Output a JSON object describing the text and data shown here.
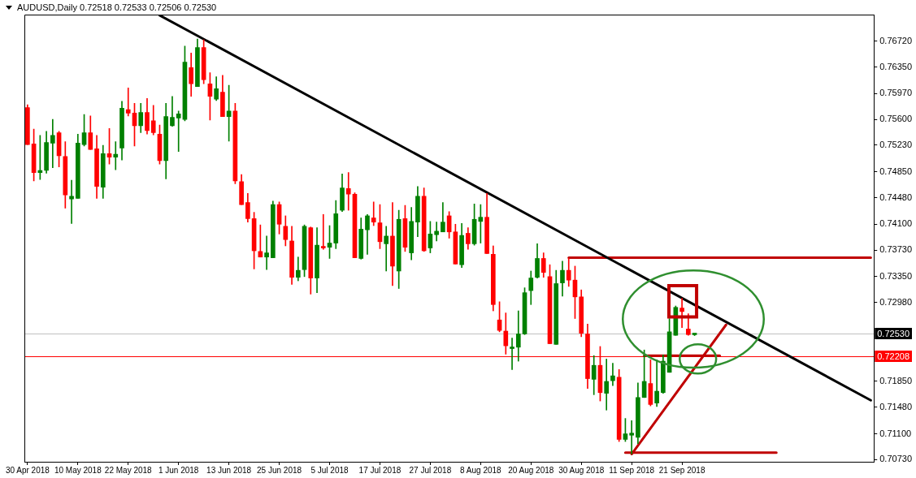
{
  "chart_data": {
    "type": "candlestick",
    "title": "AUDUSD,Daily 0.72518 0.72533 0.72506 0.72530",
    "categories": [
      "30 Apr 2018",
      null,
      null,
      null,
      null,
      null,
      null,
      null,
      "10 May 2018",
      null,
      null,
      null,
      null,
      null,
      null,
      null,
      "22 May 2018",
      null,
      null,
      null,
      null,
      null,
      null,
      null,
      "1 Jun 2018",
      null,
      null,
      null,
      null,
      null,
      null,
      null,
      "13 Jun 2018",
      null,
      null,
      null,
      null,
      null,
      null,
      null,
      "25 Jun 2018",
      null,
      null,
      null,
      null,
      null,
      null,
      null,
      "5 Jul 2018",
      null,
      null,
      null,
      null,
      null,
      null,
      null,
      "17 Jul 2018",
      null,
      null,
      null,
      null,
      null,
      null,
      null,
      "27 Jul 2018",
      null,
      null,
      null,
      null,
      null,
      null,
      null,
      "8 Aug 2018",
      null,
      null,
      null,
      null,
      null,
      null,
      null,
      "20 Aug 2018",
      null,
      null,
      null,
      null,
      null,
      null,
      null,
      "30 Aug 2018",
      null,
      null,
      null,
      null,
      null,
      null,
      null,
      "11 Sep 2018",
      null,
      null,
      null,
      null,
      null,
      null,
      null,
      "21 Sep 2018",
      null,
      null,
      null,
      null,
      null,
      null,
      null,
      null,
      null,
      null,
      null,
      null,
      null,
      null,
      null,
      null,
      null,
      null,
      null,
      null,
      null,
      null,
      null,
      null,
      null,
      null,
      null,
      null,
      null,
      null
    ],
    "ylim": [
      0.707,
      0.771
    ],
    "yticks": [
      {
        "value": 0.7672,
        "label": "0.76720"
      },
      {
        "value": 0.7635,
        "label": "0.76350"
      },
      {
        "value": 0.7597,
        "label": "0.75970"
      },
      {
        "value": 0.756,
        "label": "0.75600"
      },
      {
        "value": 0.7523,
        "label": "0.75230"
      },
      {
        "value": 0.7485,
        "label": "0.74850"
      },
      {
        "value": 0.7448,
        "label": "0.74480"
      },
      {
        "value": 0.741,
        "label": "0.74100"
      },
      {
        "value": 0.7373,
        "label": "0.73730"
      },
      {
        "value": 0.7335,
        "label": "0.73350"
      },
      {
        "value": 0.7298,
        "label": "0.72980"
      },
      {
        "value": 0.7185,
        "label": "0.71850"
      },
      {
        "value": 0.7148,
        "label": "0.71480"
      },
      {
        "value": 0.711,
        "label": "0.71100"
      },
      {
        "value": 0.7073,
        "label": "0.70730"
      }
    ],
    "ref_lines": [
      {
        "axis": "y",
        "value": 0.7253,
        "label": "0.72530",
        "color": "#c0c0c0"
      },
      {
        "axis": "y",
        "value": 0.72208,
        "label": "0.72208",
        "color": "#ff0000"
      }
    ],
    "series": [
      {
        "ohlc": [
          [
            0.7577,
            0.7581,
            0.7524,
            0.7524
          ],
          [
            0.7525,
            0.7546,
            0.7472,
            0.7484
          ],
          [
            0.7484,
            0.7537,
            0.7474,
            0.7487
          ],
          [
            0.7487,
            0.7543,
            0.7483,
            0.7527
          ],
          [
            0.7526,
            0.756,
            0.7491,
            0.7537
          ],
          [
            0.7541,
            0.7543,
            0.7492,
            0.7508
          ],
          [
            0.7507,
            0.7528,
            0.7433,
            0.7452
          ],
          [
            0.7446,
            0.7473,
            0.7411,
            0.745
          ],
          [
            0.7447,
            0.7539,
            0.7447,
            0.7526
          ],
          [
            0.7524,
            0.7567,
            0.7522,
            0.7541
          ],
          [
            0.7541,
            0.7565,
            0.7517,
            0.7517
          ],
          [
            0.7518,
            0.7537,
            0.7447,
            0.7464
          ],
          [
            0.7463,
            0.7523,
            0.7447,
            0.7511
          ],
          [
            0.7511,
            0.7547,
            0.7496,
            0.7506
          ],
          [
            0.7506,
            0.7528,
            0.7488,
            0.751
          ],
          [
            0.7519,
            0.7586,
            0.7502,
            0.7576
          ],
          [
            0.7574,
            0.7605,
            0.7565,
            0.7569
          ],
          [
            0.7569,
            0.7583,
            0.7522,
            0.7551
          ],
          [
            0.7551,
            0.7583,
            0.7541,
            0.757
          ],
          [
            0.757,
            0.759,
            0.7539,
            0.7544
          ],
          [
            0.7558,
            0.758,
            0.7538,
            0.7541
          ],
          [
            0.7539,
            0.7552,
            0.7496,
            0.7501
          ],
          [
            0.7501,
            0.7583,
            0.7475,
            0.7564
          ],
          [
            0.7551,
            0.7593,
            0.755,
            0.7563
          ],
          [
            0.7562,
            0.7572,
            0.7514,
            0.7568
          ],
          [
            0.756,
            0.7665,
            0.7558,
            0.7642
          ],
          [
            0.7634,
            0.7655,
            0.7593,
            0.7611
          ],
          [
            0.7607,
            0.7675,
            0.7607,
            0.7663
          ],
          [
            0.7663,
            0.7674,
            0.7611,
            0.7617
          ],
          [
            0.7611,
            0.7627,
            0.7559,
            0.7593
          ],
          [
            0.7589,
            0.7621,
            0.7587,
            0.7604
          ],
          [
            0.7599,
            0.7623,
            0.7564,
            0.7564
          ],
          [
            0.7564,
            0.7609,
            0.7529,
            0.7572
          ],
          [
            0.7572,
            0.7583,
            0.7468,
            0.7472
          ],
          [
            0.7471,
            0.7481,
            0.7438,
            0.7438
          ],
          [
            0.7441,
            0.7454,
            0.7413,
            0.7418
          ],
          [
            0.7418,
            0.7427,
            0.7346,
            0.7372
          ],
          [
            0.7371,
            0.7409,
            0.7363,
            0.7363
          ],
          [
            0.7363,
            0.7393,
            0.7345,
            0.7369
          ],
          [
            0.7362,
            0.7443,
            0.7362,
            0.7438
          ],
          [
            0.7438,
            0.7442,
            0.7396,
            0.741
          ],
          [
            0.7407,
            0.7422,
            0.7379,
            0.7388
          ],
          [
            0.7386,
            0.7407,
            0.7324,
            0.7334
          ],
          [
            0.7334,
            0.7363,
            0.7329,
            0.7344
          ],
          [
            0.7345,
            0.7409,
            0.7335,
            0.7407
          ],
          [
            0.7405,
            0.7406,
            0.731,
            0.7333
          ],
          [
            0.7333,
            0.7405,
            0.7312,
            0.738
          ],
          [
            0.7378,
            0.7424,
            0.7374,
            0.7376
          ],
          [
            0.7377,
            0.7408,
            0.7361,
            0.7383
          ],
          [
            0.7383,
            0.7444,
            0.7375,
            0.7425
          ],
          [
            0.743,
            0.7482,
            0.7428,
            0.7462
          ],
          [
            0.7461,
            0.7484,
            0.743,
            0.7453
          ],
          [
            0.7453,
            0.7455,
            0.7362,
            0.7362
          ],
          [
            0.7361,
            0.7419,
            0.736,
            0.7403
          ],
          [
            0.7402,
            0.7424,
            0.7367,
            0.7422
          ],
          [
            0.7419,
            0.7442,
            0.7408,
            0.7413
          ],
          [
            0.7412,
            0.7438,
            0.7375,
            0.7385
          ],
          [
            0.7382,
            0.7407,
            0.7343,
            0.7393
          ],
          [
            0.7393,
            0.7441,
            0.7322,
            0.735
          ],
          [
            0.7343,
            0.743,
            0.7318,
            0.7417
          ],
          [
            0.7418,
            0.7437,
            0.7371,
            0.7377
          ],
          [
            0.7369,
            0.7434,
            0.7359,
            0.7414
          ],
          [
            0.7413,
            0.7464,
            0.7392,
            0.745
          ],
          [
            0.745,
            0.7462,
            0.7371,
            0.7372
          ],
          [
            0.7376,
            0.7414,
            0.7369,
            0.7396
          ],
          [
            0.7395,
            0.7413,
            0.7386,
            0.74
          ],
          [
            0.7399,
            0.7441,
            0.7399,
            0.7413
          ],
          [
            0.7422,
            0.7428,
            0.739,
            0.7399
          ],
          [
            0.7399,
            0.741,
            0.7353,
            0.7353
          ],
          [
            0.7352,
            0.7411,
            0.7348,
            0.7394
          ],
          [
            0.7397,
            0.7405,
            0.7374,
            0.7382
          ],
          [
            0.7382,
            0.7439,
            0.738,
            0.7417
          ],
          [
            0.7414,
            0.7438,
            0.7383,
            0.742
          ],
          [
            0.742,
            0.7454,
            0.7368,
            0.7368
          ],
          [
            0.7367,
            0.7379,
            0.7286,
            0.7295
          ],
          [
            0.7273,
            0.7299,
            0.7256,
            0.7258
          ],
          [
            0.7257,
            0.7283,
            0.7224,
            0.7236
          ],
          [
            0.7232,
            0.7247,
            0.7202,
            0.7234
          ],
          [
            0.7234,
            0.7286,
            0.7214,
            0.7253
          ],
          [
            0.7253,
            0.7319,
            0.7252,
            0.7312
          ],
          [
            0.7315,
            0.7343,
            0.7295,
            0.7333
          ],
          [
            0.7334,
            0.7382,
            0.7333,
            0.7361
          ],
          [
            0.7361,
            0.7369,
            0.7334,
            0.7341
          ],
          [
            0.7335,
            0.7352,
            0.7239,
            0.7239
          ],
          [
            0.7238,
            0.7344,
            0.7238,
            0.7325
          ],
          [
            0.7326,
            0.7357,
            0.7307,
            0.7344
          ],
          [
            0.7344,
            0.7361,
            0.7321,
            0.733
          ],
          [
            0.733,
            0.735,
            0.7275,
            0.7306
          ],
          [
            0.7306,
            0.7316,
            0.7249,
            0.7254
          ],
          [
            0.7253,
            0.7267,
            0.7175,
            0.7189
          ],
          [
            0.7188,
            0.7222,
            0.7166,
            0.7208
          ],
          [
            0.7208,
            0.7235,
            0.7157,
            0.7169
          ],
          [
            0.7168,
            0.7217,
            0.7144,
            0.7185
          ],
          [
            0.7186,
            0.7211,
            0.7179,
            0.7193
          ],
          [
            0.7191,
            0.7202,
            0.7099,
            0.7102
          ],
          [
            0.7102,
            0.7132,
            0.7099,
            0.711
          ],
          [
            0.7108,
            0.7129,
            0.7081,
            0.7111
          ],
          [
            0.7105,
            0.7183,
            0.7096,
            0.7162
          ],
          [
            0.7162,
            0.723,
            0.7162,
            0.7185
          ],
          [
            0.7182,
            0.7216,
            0.715,
            0.7152
          ],
          [
            0.7154,
            0.7216,
            0.7149,
            0.7171
          ],
          [
            0.7169,
            0.7223,
            0.7168,
            0.7214
          ],
          [
            0.7198,
            0.7275,
            0.7198,
            0.7256
          ],
          [
            0.7251,
            0.7293,
            0.7251,
            0.7291
          ],
          [
            0.729,
            0.7304,
            0.7262,
            0.7285
          ],
          [
            0.726,
            0.7282,
            0.7251,
            0.7252
          ],
          [
            0.72518,
            0.72533,
            0.72506,
            0.7253
          ],
          null,
          null,
          null,
          null,
          null,
          null,
          null,
          null,
          null,
          null,
          null,
          null,
          null,
          null,
          null,
          null,
          null,
          null,
          null,
          null,
          null,
          null,
          null,
          null,
          null,
          null,
          null,
          null
        ],
        "colors": [
          "#ff0000",
          "#ff0000",
          "#008000",
          "#008000",
          "#008000",
          "#ff0000",
          "#ff0000",
          "#008000",
          "#008000",
          "#008000",
          "#ff0000",
          "#ff0000",
          "#008000",
          "#ff0000",
          "#008000",
          "#008000",
          "#ff0000",
          "#ff0000",
          "#008000",
          "#ff0000",
          "#ff0000",
          "#ff0000",
          "#008000",
          "#008000",
          "#008000",
          "#008000",
          "#ff0000",
          "#008000",
          "#ff0000",
          "#ff0000",
          "#008000",
          "#ff0000",
          "#008000",
          "#ff0000",
          "#ff0000",
          "#ff0000",
          "#ff0000",
          "#ff0000",
          "#008000",
          "#008000",
          "#ff0000",
          "#ff0000",
          "#ff0000",
          "#008000",
          "#008000",
          "#ff0000",
          "#008000",
          "#ff0000",
          "#008000",
          "#008000",
          "#008000",
          "#ff0000",
          "#ff0000",
          "#008000",
          "#008000",
          "#ff0000",
          "#ff0000",
          "#008000",
          "#ff0000",
          "#008000",
          "#ff0000",
          "#008000",
          "#008000",
          "#ff0000",
          "#008000",
          "#008000",
          "#008000",
          "#ff0000",
          "#ff0000",
          "#008000",
          "#ff0000",
          "#008000",
          "#008000",
          "#ff0000",
          "#ff0000",
          "#ff0000",
          "#ff0000",
          "#008000",
          "#008000",
          "#008000",
          "#008000",
          "#008000",
          "#ff0000",
          "#ff0000",
          "#008000",
          "#008000",
          "#ff0000",
          "#ff0000",
          "#ff0000",
          "#ff0000",
          "#008000",
          "#ff0000",
          "#008000",
          "#008000",
          "#ff0000",
          "#008000",
          "#008000",
          "#008000",
          "#008000",
          "#ff0000",
          "#008000",
          "#008000",
          "#008000",
          "#008000",
          "#ff0000",
          "#ff0000",
          "#008000",
          null,
          null,
          null,
          null,
          null,
          null,
          null,
          null,
          null,
          null,
          null,
          null,
          null,
          null,
          null,
          null,
          null,
          null,
          null,
          null,
          null,
          null,
          null,
          null,
          null,
          null,
          null,
          null
        ]
      },
      {
        "type": "line",
        "color": "#000000",
        "values": [
          null,
          null,
          null,
          null,
          null,
          null,
          null,
          null,
          null,
          null,
          null,
          null,
          null,
          null,
          null,
          null,
          null,
          null,
          null,
          null,
          null,
          0.7709,
          null,
          null,
          null,
          null,
          null,
          null,
          null,
          null,
          null,
          null,
          null,
          null,
          null,
          null,
          null,
          null,
          null,
          null,
          null,
          null,
          null,
          null,
          null,
          null,
          null,
          null,
          null,
          null,
          null,
          null,
          null,
          null,
          null,
          null,
          null,
          null,
          null,
          null,
          null,
          null,
          null,
          null,
          null,
          null,
          null,
          null,
          null,
          null,
          null,
          null,
          null,
          null,
          null,
          null,
          null,
          null,
          null,
          null,
          null,
          null,
          null,
          null,
          null,
          null,
          null,
          null,
          null,
          null,
          null,
          null,
          null,
          null,
          null,
          null,
          null,
          null,
          null,
          null,
          null,
          null,
          null,
          null,
          null,
          null,
          null,
          null,
          null,
          null,
          null,
          null,
          null,
          null,
          null,
          null,
          null,
          null,
          null,
          null,
          null,
          null,
          null,
          null,
          null,
          null,
          null,
          null,
          null,
          null,
          null,
          null,
          null,
          null,
          0.7158
        ]
      },
      {
        "type": "line",
        "color": "#c00000",
        "values": [
          null,
          null,
          null,
          null,
          null,
          null,
          null,
          null,
          null,
          null,
          null,
          null,
          null,
          null,
          null,
          null,
          null,
          null,
          null,
          null,
          null,
          null,
          null,
          null,
          null,
          null,
          null,
          null,
          null,
          null,
          null,
          null,
          null,
          null,
          null,
          null,
          null,
          null,
          null,
          null,
          null,
          null,
          null,
          null,
          null,
          null,
          null,
          null,
          null,
          null,
          null,
          null,
          null,
          null,
          null,
          null,
          null,
          null,
          null,
          null,
          null,
          null,
          null,
          null,
          null,
          null,
          null,
          null,
          null,
          null,
          null,
          null,
          null,
          null,
          null,
          null,
          null,
          null,
          null,
          null,
          null,
          null,
          null,
          null,
          null,
          null,
          0.7362,
          null,
          null,
          null,
          null,
          null,
          null,
          null,
          null,
          null,
          null,
          null,
          null,
          null,
          null,
          null,
          null,
          null,
          null,
          null,
          null,
          null,
          null,
          null,
          null,
          null,
          null,
          null,
          null,
          null,
          null,
          null,
          null,
          null,
          null,
          null,
          null,
          null,
          null,
          null,
          null,
          null,
          null,
          null,
          null,
          null,
          null,
          null,
          0.7362
        ]
      },
      {
        "type": "line",
        "color": "#c00000",
        "values": [
          null,
          null,
          null,
          null,
          null,
          null,
          null,
          null,
          null,
          null,
          null,
          null,
          null,
          null,
          null,
          null,
          null,
          null,
          null,
          null,
          null,
          null,
          null,
          null,
          null,
          null,
          null,
          null,
          null,
          null,
          null,
          null,
          null,
          null,
          null,
          null,
          null,
          null,
          null,
          null,
          null,
          null,
          null,
          null,
          null,
          null,
          null,
          null,
          null,
          null,
          null,
          null,
          null,
          null,
          null,
          null,
          null,
          null,
          null,
          null,
          null,
          null,
          null,
          null,
          null,
          null,
          null,
          null,
          null,
          null,
          null,
          null,
          null,
          null,
          null,
          null,
          null,
          null,
          null,
          null,
          null,
          null,
          null,
          null,
          null,
          null,
          null,
          null,
          null,
          null,
          null,
          null,
          null,
          null,
          null,
          0.7083,
          null,
          null,
          null,
          null,
          null,
          null,
          null,
          null,
          null,
          null,
          null,
          null,
          null,
          null,
          null,
          null,
          null,
          null,
          null,
          null,
          null,
          null,
          null,
          0.7083,
          null,
          null,
          null,
          null,
          null,
          null,
          null,
          null,
          null,
          null,
          null,
          null,
          null,
          null,
          null
        ]
      },
      {
        "type": "line",
        "color": "#c00000",
        "values": [
          null,
          null,
          null,
          null,
          null,
          null,
          null,
          null,
          null,
          null,
          null,
          null,
          null,
          null,
          null,
          null,
          null,
          null,
          null,
          null,
          null,
          null,
          null,
          null,
          null,
          null,
          null,
          null,
          null,
          null,
          null,
          null,
          null,
          null,
          null,
          null,
          null,
          null,
          null,
          null,
          null,
          null,
          null,
          null,
          null,
          null,
          null,
          null,
          null,
          null,
          null,
          null,
          null,
          null,
          null,
          null,
          null,
          null,
          null,
          null,
          null,
          null,
          null,
          null,
          null,
          null,
          null,
          null,
          null,
          null,
          null,
          null,
          null,
          null,
          null,
          null,
          null,
          null,
          null,
          null,
          null,
          null,
          null,
          null,
          null,
          null,
          null,
          null,
          null,
          null,
          null,
          null,
          null,
          null,
          null,
          null,
          null,
          null,
          0.7222,
          null,
          null,
          null,
          null,
          null,
          null,
          null,
          null,
          null,
          null,
          null,
          0.7222,
          null,
          null,
          null,
          null,
          null,
          null,
          null,
          null,
          null,
          null,
          null,
          null,
          null,
          null,
          null,
          null,
          null,
          null,
          null,
          null,
          null,
          null,
          null,
          null
        ]
      },
      {
        "type": "line",
        "color": "#c00000",
        "values": [
          null,
          null,
          null,
          null,
          null,
          null,
          null,
          null,
          null,
          null,
          null,
          null,
          null,
          null,
          null,
          null,
          null,
          null,
          null,
          null,
          null,
          null,
          null,
          null,
          null,
          null,
          null,
          null,
          null,
          null,
          null,
          null,
          null,
          null,
          null,
          null,
          null,
          null,
          null,
          null,
          null,
          null,
          null,
          null,
          null,
          null,
          null,
          null,
          null,
          null,
          null,
          null,
          null,
          null,
          null,
          null,
          null,
          null,
          null,
          null,
          null,
          null,
          null,
          null,
          null,
          null,
          null,
          null,
          null,
          null,
          null,
          null,
          null,
          null,
          null,
          null,
          null,
          null,
          null,
          null,
          null,
          null,
          null,
          null,
          null,
          null,
          null,
          null,
          null,
          null,
          null,
          null,
          null,
          null,
          null,
          null,
          0.7081,
          null,
          null,
          null,
          null,
          null,
          null,
          null,
          null,
          null,
          null,
          null,
          null,
          null,
          null,
          0.7266,
          null,
          null,
          null,
          null,
          null,
          null,
          null,
          null,
          null,
          null,
          null,
          null,
          null,
          null,
          null,
          null,
          null,
          null,
          null,
          null,
          null,
          null,
          null
        ]
      }
    ]
  }
}
